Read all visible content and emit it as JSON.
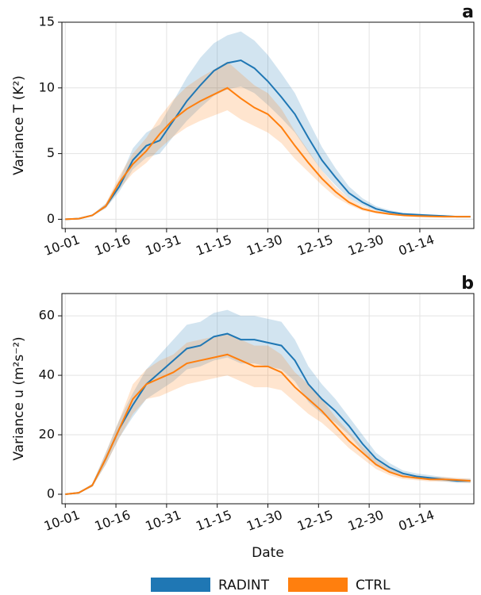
{
  "chart_data": [
    {
      "type": "line",
      "panel_label": "a",
      "ylabel": "Variance T (K²)",
      "x": [
        0,
        4,
        8,
        12,
        16,
        20,
        24,
        28,
        32,
        36,
        40,
        44,
        48,
        52,
        56,
        60,
        64,
        68,
        72,
        76,
        80,
        84,
        88,
        92,
        96,
        100,
        104,
        108,
        112,
        116,
        120
      ],
      "xlim": [
        -1,
        121
      ],
      "xticks": [
        {
          "value": 0,
          "label": "10-01"
        },
        {
          "value": 15,
          "label": "10-16"
        },
        {
          "value": 30,
          "label": "10-31"
        },
        {
          "value": 45,
          "label": "11-15"
        },
        {
          "value": 60,
          "label": "11-30"
        },
        {
          "value": 75,
          "label": "12-15"
        },
        {
          "value": 90,
          "label": "12-30"
        },
        {
          "value": 105,
          "label": "01-14"
        }
      ],
      "ylim": [
        -0.7,
        15
      ],
      "yticks": [
        0,
        5,
        10,
        15
      ],
      "grid": true,
      "series": [
        {
          "color": "#1f77b4",
          "values": [
            0,
            0.05,
            0.3,
            1.0,
            2.5,
            4.5,
            5.6,
            6.0,
            7.5,
            9.0,
            10.2,
            11.3,
            11.9,
            12.1,
            11.5,
            10.5,
            9.3,
            8.0,
            6.2,
            4.5,
            3.2,
            2.0,
            1.3,
            0.8,
            0.55,
            0.4,
            0.35,
            0.3,
            0.25,
            0.2,
            0.2
          ],
          "upper": [
            0,
            0.06,
            0.35,
            1.2,
            3.0,
            5.4,
            6.6,
            7.2,
            9.0,
            10.8,
            12.3,
            13.4,
            14.0,
            14.3,
            13.6,
            12.5,
            11.1,
            9.6,
            7.5,
            5.5,
            3.9,
            2.5,
            1.6,
            1.0,
            0.7,
            0.5,
            0.43,
            0.37,
            0.31,
            0.25,
            0.25
          ],
          "lower": [
            0,
            0.04,
            0.25,
            0.85,
            2.1,
            3.8,
            4.7,
            5.0,
            6.3,
            7.5,
            8.5,
            9.4,
            9.9,
            10.1,
            9.6,
            8.7,
            7.7,
            6.6,
            5.1,
            3.7,
            2.6,
            1.6,
            1.05,
            0.65,
            0.45,
            0.32,
            0.28,
            0.24,
            0.2,
            0.16,
            0.16
          ]
        },
        {
          "color": "#ff7f0e",
          "values": [
            0,
            0.05,
            0.3,
            1.0,
            2.8,
            4.2,
            5.2,
            6.5,
            7.6,
            8.4,
            9.0,
            9.5,
            10.0,
            9.2,
            8.5,
            8.0,
            7.0,
            5.6,
            4.3,
            3.1,
            2.1,
            1.3,
            0.8,
            0.55,
            0.4,
            0.3,
            0.25,
            0.22,
            0.2,
            0.2,
            0.2
          ],
          "upper": [
            0,
            0.06,
            0.35,
            1.2,
            3.3,
            5.0,
            6.2,
            7.8,
            9.1,
            10.1,
            10.8,
            11.4,
            12.0,
            11.1,
            10.2,
            9.6,
            8.4,
            6.7,
            5.2,
            3.7,
            2.5,
            1.6,
            1.0,
            0.66,
            0.48,
            0.36,
            0.3,
            0.26,
            0.24,
            0.24,
            0.24
          ],
          "lower": [
            0,
            0.04,
            0.25,
            0.85,
            2.3,
            3.5,
            4.3,
            5.4,
            6.3,
            7.0,
            7.5,
            7.9,
            8.3,
            7.6,
            7.1,
            6.6,
            5.8,
            4.6,
            3.6,
            2.6,
            1.7,
            1.1,
            0.66,
            0.45,
            0.33,
            0.25,
            0.21,
            0.18,
            0.17,
            0.17,
            0.17
          ]
        }
      ]
    },
    {
      "type": "line",
      "panel_label": "b",
      "ylabel": "Variance u (m²s⁻²)",
      "xlabel": "Date",
      "x": [
        0,
        4,
        8,
        12,
        16,
        20,
        24,
        28,
        32,
        36,
        40,
        44,
        48,
        52,
        56,
        60,
        64,
        68,
        72,
        76,
        80,
        84,
        88,
        92,
        96,
        100,
        104,
        108,
        112,
        116,
        120
      ],
      "xlim": [
        -1,
        121
      ],
      "xticks": [
        {
          "value": 0,
          "label": "10-01"
        },
        {
          "value": 15,
          "label": "10-16"
        },
        {
          "value": 30,
          "label": "10-31"
        },
        {
          "value": 45,
          "label": "11-15"
        },
        {
          "value": 60,
          "label": "11-30"
        },
        {
          "value": 75,
          "label": "12-15"
        },
        {
          "value": 90,
          "label": "12-30"
        },
        {
          "value": 105,
          "label": "01-14"
        }
      ],
      "ylim": [
        -3.2,
        67.5
      ],
      "yticks": [
        0,
        20,
        40,
        60
      ],
      "grid": true,
      "series": [
        {
          "name": "RADINT",
          "color": "#1f77b4",
          "values": [
            0,
            0.5,
            3,
            12,
            22,
            30,
            37,
            41,
            45,
            49,
            50,
            53,
            54,
            52,
            52,
            51,
            50,
            45,
            37,
            32,
            28,
            23,
            17,
            12,
            9,
            7,
            6,
            5.5,
            5,
            4.5,
            4.5
          ],
          "upper": [
            0,
            0.6,
            3.5,
            14,
            25,
            34,
            42,
            47,
            52,
            57,
            58,
            61,
            62,
            60,
            60,
            59,
            58,
            52,
            43,
            37,
            32,
            26,
            20,
            14,
            10.5,
            8,
            7,
            6.4,
            5.8,
            5.2,
            5.2
          ],
          "lower": [
            0,
            0.4,
            2.5,
            10,
            19,
            26,
            32,
            35,
            38,
            42,
            43,
            45,
            46,
            44,
            44,
            43,
            42,
            38,
            31,
            27,
            24,
            20,
            14.5,
            10,
            7.7,
            6,
            5.1,
            4.7,
            4.3,
            3.8,
            3.8
          ]
        },
        {
          "name": "CTRL",
          "color": "#ff7f0e",
          "values": [
            0,
            0.5,
            3,
            12,
            22,
            32,
            37,
            39,
            41,
            44,
            45,
            46,
            47,
            45,
            43,
            43,
            41,
            36,
            32,
            28,
            23,
            18,
            14,
            10,
            7.5,
            6,
            5.5,
            5,
            5,
            4.8,
            4.5
          ],
          "upper": [
            0,
            0.6,
            3.5,
            14,
            25,
            37,
            42,
            45,
            47,
            51,
            52,
            53,
            54,
            52,
            50,
            50,
            47,
            41,
            37,
            32,
            26,
            21,
            16,
            11.5,
            8.6,
            6.9,
            6.3,
            5.8,
            5.8,
            5.5,
            5.2
          ],
          "lower": [
            0,
            0.4,
            2.5,
            10,
            19,
            27,
            32,
            33,
            35,
            37,
            38,
            39,
            40,
            38,
            36,
            36,
            35,
            31,
            27,
            24,
            20,
            15.5,
            12,
            8.5,
            6.4,
            5.1,
            4.7,
            4.3,
            4.3,
            4.1,
            3.8
          ]
        }
      ]
    }
  ]
}
